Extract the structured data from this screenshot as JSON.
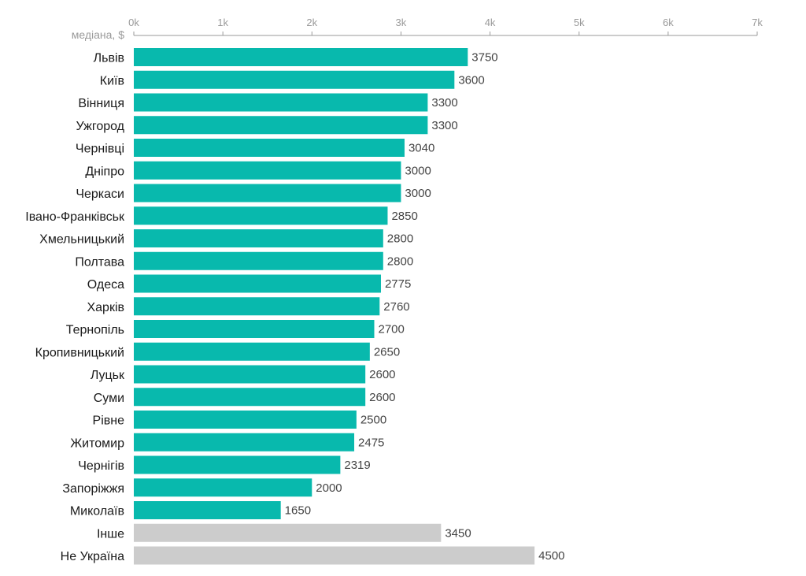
{
  "chart_data": {
    "type": "bar",
    "orientation": "horizontal",
    "ylabel": "медіана, $",
    "xlim": [
      0,
      7000
    ],
    "ticks": [
      {
        "value": 0,
        "label": "0k"
      },
      {
        "value": 1000,
        "label": "1k"
      },
      {
        "value": 2000,
        "label": "2k"
      },
      {
        "value": 3000,
        "label": "3k"
      },
      {
        "value": 4000,
        "label": "4k"
      },
      {
        "value": 5000,
        "label": "5k"
      },
      {
        "value": 6000,
        "label": "6k"
      },
      {
        "value": 7000,
        "label": "7k"
      }
    ],
    "grid": false,
    "colors": {
      "primary": "#08b9ad",
      "secondary": "#cccccc"
    },
    "bars": [
      {
        "category": "Львів",
        "value": 3750,
        "label": "3750",
        "group": "primary"
      },
      {
        "category": "Київ",
        "value": 3600,
        "label": "3600",
        "group": "primary"
      },
      {
        "category": "Вінниця",
        "value": 3300,
        "label": "3300",
        "group": "primary"
      },
      {
        "category": "Ужгород",
        "value": 3300,
        "label": "3300",
        "group": "primary"
      },
      {
        "category": "Чернівці",
        "value": 3040,
        "label": "3040",
        "group": "primary"
      },
      {
        "category": "Дніпро",
        "value": 3000,
        "label": "3000",
        "group": "primary"
      },
      {
        "category": "Черкаси",
        "value": 3000,
        "label": "3000",
        "group": "primary"
      },
      {
        "category": "Івано-Франківськ",
        "value": 2850,
        "label": "2850",
        "group": "primary"
      },
      {
        "category": "Хмельницький",
        "value": 2800,
        "label": "2800",
        "group": "primary"
      },
      {
        "category": "Полтава",
        "value": 2800,
        "label": "2800",
        "group": "primary"
      },
      {
        "category": "Одеса",
        "value": 2775,
        "label": "2775",
        "group": "primary"
      },
      {
        "category": "Харків",
        "value": 2760,
        "label": "2760",
        "group": "primary"
      },
      {
        "category": "Тернопіль",
        "value": 2700,
        "label": "2700",
        "group": "primary"
      },
      {
        "category": "Кропивницький",
        "value": 2650,
        "label": "2650",
        "group": "primary"
      },
      {
        "category": "Луцьк",
        "value": 2600,
        "label": "2600",
        "group": "primary"
      },
      {
        "category": "Суми",
        "value": 2600,
        "label": "2600",
        "group": "primary"
      },
      {
        "category": "Рівне",
        "value": 2500,
        "label": "2500",
        "group": "primary"
      },
      {
        "category": "Житомир",
        "value": 2475,
        "label": "2475",
        "group": "primary"
      },
      {
        "category": "Чернігів",
        "value": 2319,
        "label": "2319",
        "group": "primary"
      },
      {
        "category": "Запоріжжя",
        "value": 2000,
        "label": "2000",
        "group": "primary"
      },
      {
        "category": "Миколаїв",
        "value": 1650,
        "label": "1650",
        "group": "primary"
      },
      {
        "category": "Інше",
        "value": 3450,
        "label": "3450",
        "group": "secondary"
      },
      {
        "category": "Не Україна",
        "value": 4500,
        "label": "4500",
        "group": "secondary"
      }
    ]
  }
}
